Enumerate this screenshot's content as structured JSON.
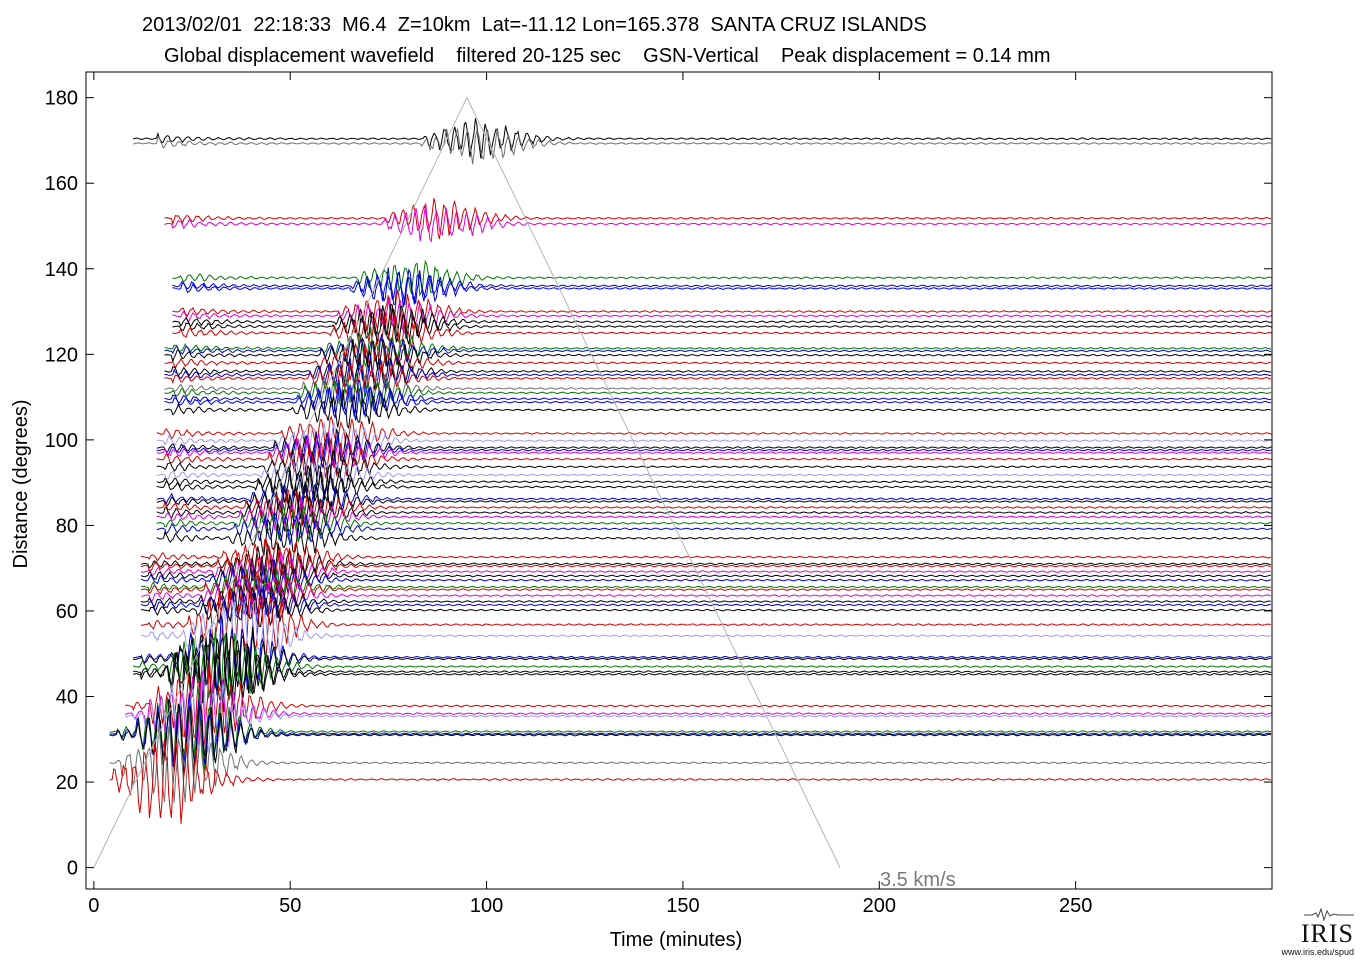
{
  "header": {
    "line1": "2013/02/01  22:18:33  M6.4  Z=10km  Lat=-11.12 Lon=165.378  SANTA CRUZ ISLANDS",
    "line2": "Global displacement wavefield    filtered 20-125 sec    GSN-Vertical    Peak displacement = 0.14 mm"
  },
  "logo": {
    "word": "IRIS",
    "url": "www.iris.edu/spud"
  },
  "chart_data": {
    "type": "line",
    "title": "2013/02/01  22:18:33  M6.4  Z=10km  Lat=-11.12 Lon=165.378  SANTA CRUZ ISLANDS",
    "subtitle": "Global displacement wavefield    filtered 20-125 sec    GSN-Vertical    Peak displacement = 0.14 mm",
    "xlabel": "Time (minutes)",
    "ylabel": "Distance (degrees)",
    "xlim": [
      -2,
      300
    ],
    "ylim": [
      -5,
      186
    ],
    "xticks": [
      0,
      50,
      100,
      150,
      200,
      250
    ],
    "yticks": [
      0,
      20,
      40,
      60,
      80,
      100,
      120,
      140,
      160,
      180
    ],
    "grid": false,
    "reference_line": {
      "label": "3.5 km/s",
      "x": [
        0,
        95,
        190
      ],
      "y": [
        0,
        180,
        0
      ],
      "color": "#b4b4b4"
    },
    "colors": {
      "black": "#000000",
      "gray": "#707070",
      "red": "#d40000",
      "green": "#007a00",
      "blue": "#0000dd",
      "magenta": "#dd00dd",
      "lightblue": "#9a9aff"
    },
    "traces": [
      {
        "distance": 170.4,
        "color": "black",
        "start": 10
      },
      {
        "distance": 169.3,
        "color": "gray",
        "start": 10
      },
      {
        "distance": 151.8,
        "color": "red",
        "start": 18
      },
      {
        "distance": 150.5,
        "color": "magenta",
        "start": 18
      },
      {
        "distance": 137.9,
        "color": "green",
        "start": 20
      },
      {
        "distance": 136.0,
        "color": "blue",
        "start": 20
      },
      {
        "distance": 135.4,
        "color": "blue",
        "start": 20
      },
      {
        "distance": 130.0,
        "color": "red",
        "start": 20
      },
      {
        "distance": 129.0,
        "color": "magenta",
        "start": 20
      },
      {
        "distance": 127.6,
        "color": "black",
        "start": 20
      },
      {
        "distance": 126.5,
        "color": "black",
        "start": 20
      },
      {
        "distance": 125.0,
        "color": "red",
        "start": 20
      },
      {
        "distance": 121.4,
        "color": "green",
        "start": 18
      },
      {
        "distance": 120.8,
        "color": "blue",
        "start": 18
      },
      {
        "distance": 119.8,
        "color": "black",
        "start": 18
      },
      {
        "distance": 118.0,
        "color": "red",
        "start": 18
      },
      {
        "distance": 116.0,
        "color": "black",
        "start": 18
      },
      {
        "distance": 115.2,
        "color": "blue",
        "start": 18
      },
      {
        "distance": 114.4,
        "color": "red",
        "start": 18
      },
      {
        "distance": 112.0,
        "color": "gray",
        "start": 18
      },
      {
        "distance": 111.0,
        "color": "green",
        "start": 18
      },
      {
        "distance": 109.6,
        "color": "blue",
        "start": 18
      },
      {
        "distance": 108.8,
        "color": "blue",
        "start": 18
      },
      {
        "distance": 107.0,
        "color": "black",
        "start": 18
      },
      {
        "distance": 101.5,
        "color": "red",
        "start": 16
      },
      {
        "distance": 99.8,
        "color": "lightblue",
        "start": 16
      },
      {
        "distance": 98.2,
        "color": "black",
        "start": 16
      },
      {
        "distance": 97.6,
        "color": "blue",
        "start": 16
      },
      {
        "distance": 97.0,
        "color": "magenta",
        "start": 16
      },
      {
        "distance": 95.5,
        "color": "red",
        "start": 16
      },
      {
        "distance": 93.7,
        "color": "black",
        "start": 16
      },
      {
        "distance": 91.8,
        "color": "lightblue",
        "start": 16
      },
      {
        "distance": 90.2,
        "color": "black",
        "start": 16
      },
      {
        "distance": 89.0,
        "color": "black",
        "start": 16
      },
      {
        "distance": 86.2,
        "color": "blue",
        "start": 16
      },
      {
        "distance": 85.6,
        "color": "black",
        "start": 16
      },
      {
        "distance": 84.2,
        "color": "red",
        "start": 16
      },
      {
        "distance": 83.0,
        "color": "black",
        "start": 16
      },
      {
        "distance": 82.0,
        "color": "magenta",
        "start": 16
      },
      {
        "distance": 80.5,
        "color": "green",
        "start": 16
      },
      {
        "distance": 79.2,
        "color": "blue",
        "start": 16
      },
      {
        "distance": 77.0,
        "color": "black",
        "start": 16
      },
      {
        "distance": 72.6,
        "color": "red",
        "start": 12
      },
      {
        "distance": 71.0,
        "color": "black",
        "start": 12
      },
      {
        "distance": 70.5,
        "color": "red",
        "start": 12
      },
      {
        "distance": 69.2,
        "color": "magenta",
        "start": 12
      },
      {
        "distance": 68.2,
        "color": "black",
        "start": 12
      },
      {
        "distance": 67.2,
        "color": "blue",
        "start": 12
      },
      {
        "distance": 65.6,
        "color": "green",
        "start": 12
      },
      {
        "distance": 65.0,
        "color": "red",
        "start": 12
      },
      {
        "distance": 63.6,
        "color": "magenta",
        "start": 12
      },
      {
        "distance": 62.2,
        "color": "black",
        "start": 12
      },
      {
        "distance": 61.4,
        "color": "blue",
        "start": 12
      },
      {
        "distance": 60.2,
        "color": "black",
        "start": 12
      },
      {
        "distance": 56.8,
        "color": "red",
        "start": 12
      },
      {
        "distance": 54.2,
        "color": "lightblue",
        "start": 12
      },
      {
        "distance": 49.2,
        "color": "blue",
        "start": 10
      },
      {
        "distance": 48.8,
        "color": "black",
        "start": 10
      },
      {
        "distance": 47.0,
        "color": "green",
        "start": 10
      },
      {
        "distance": 45.8,
        "color": "black",
        "start": 10
      },
      {
        "distance": 45.2,
        "color": "black",
        "start": 10
      },
      {
        "distance": 37.8,
        "color": "red",
        "start": 8
      },
      {
        "distance": 36.0,
        "color": "magenta",
        "start": 8
      },
      {
        "distance": 35.4,
        "color": "lightblue",
        "start": 8
      },
      {
        "distance": 31.8,
        "color": "green",
        "start": 4
      },
      {
        "distance": 31.3,
        "color": "blue",
        "start": 4
      },
      {
        "distance": 31.0,
        "color": "black",
        "start": 4
      },
      {
        "distance": 24.5,
        "color": "gray",
        "start": 4
      },
      {
        "distance": 20.6,
        "color": "red",
        "start": 4
      }
    ]
  }
}
